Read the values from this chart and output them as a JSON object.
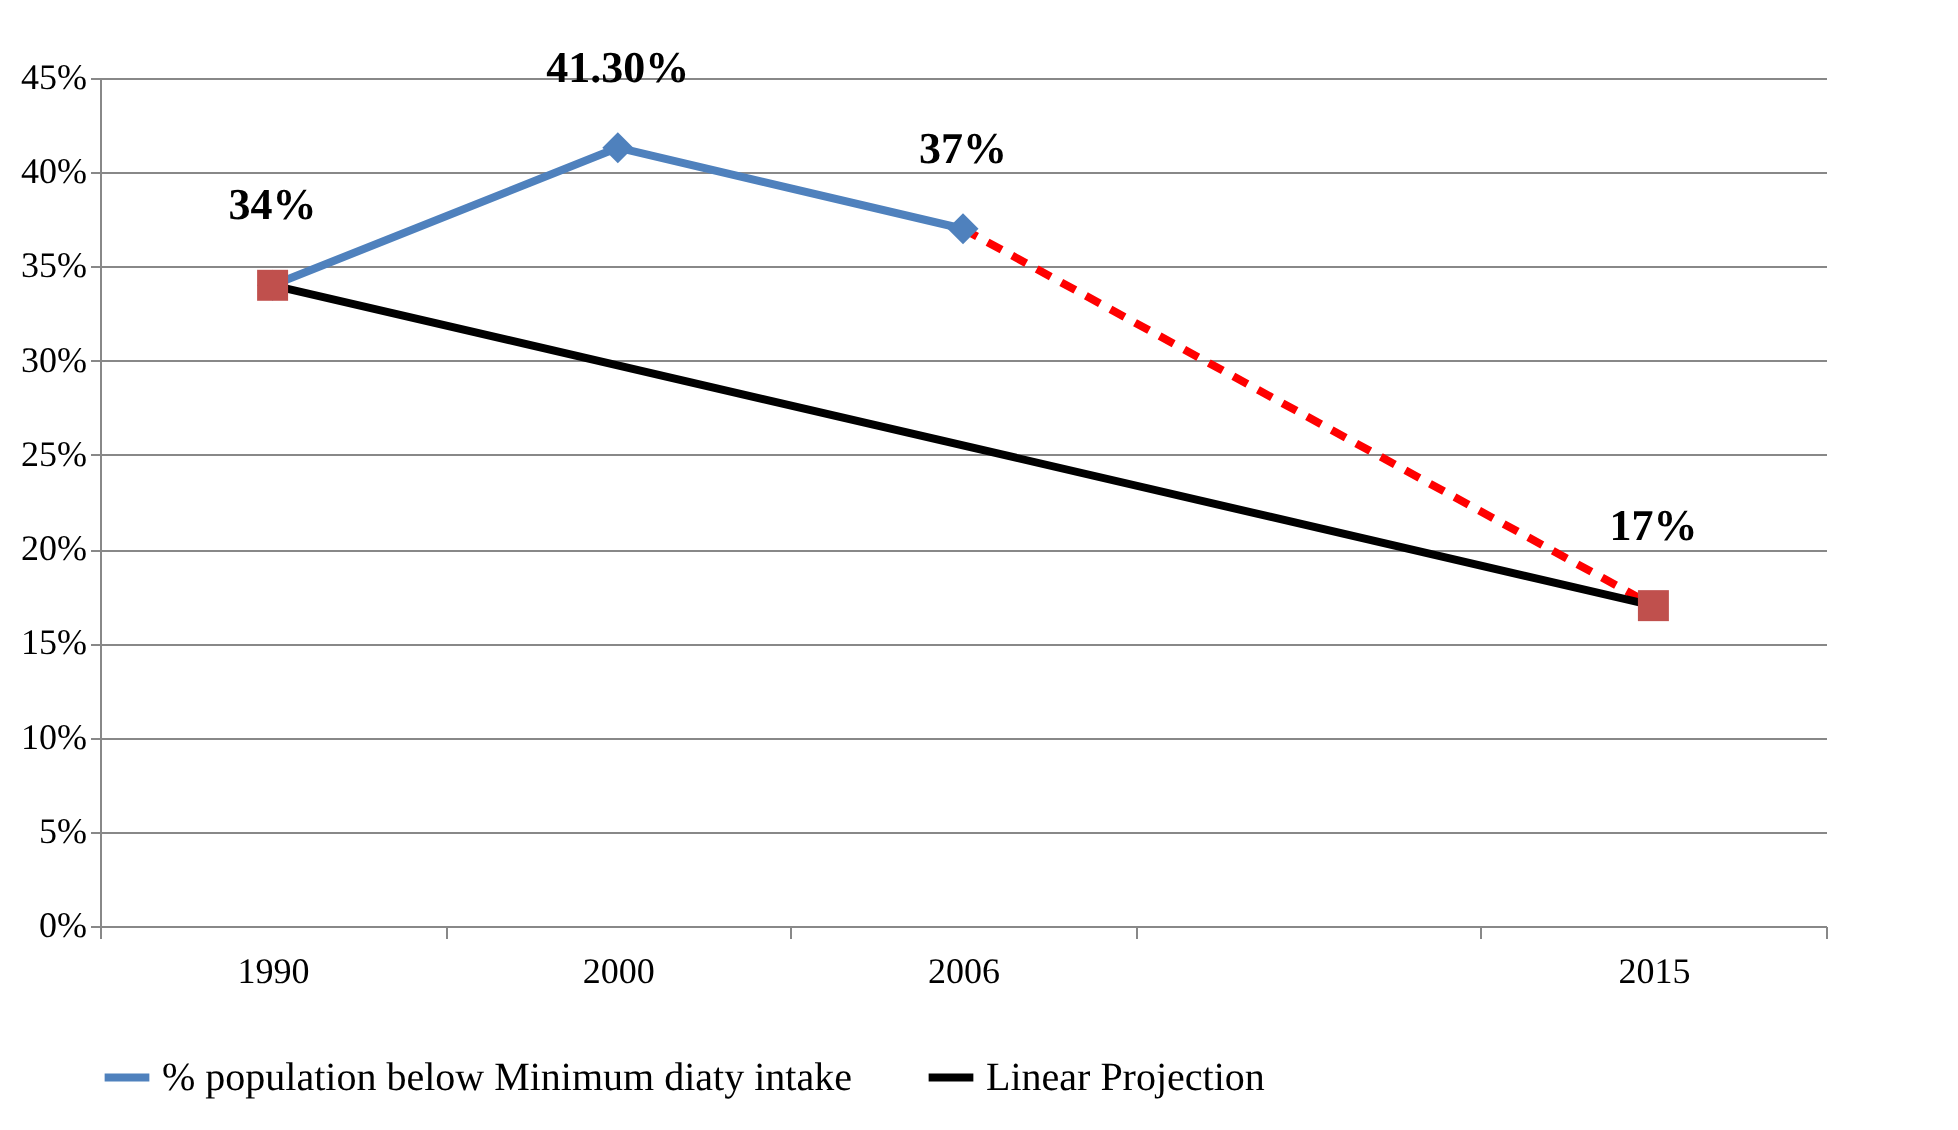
{
  "chart_data": {
    "type": "line",
    "categories": [
      "1990",
      "2000",
      "2006",
      null,
      "2015"
    ],
    "series": [
      {
        "name": "% population below Minimum diaty intake",
        "color": "#4f81bd",
        "marker": "diamond",
        "line_style": "solid",
        "values": [
          34,
          41.3,
          37,
          null,
          null
        ],
        "value_labels": [
          "34%",
          "41.30%",
          "37%",
          null,
          null
        ]
      },
      {
        "color": "#ff0000",
        "marker": "none",
        "line_style": "dashed",
        "values": [
          null,
          null,
          37,
          null,
          17
        ],
        "value_labels": [
          null,
          null,
          null,
          null,
          "17%"
        ]
      },
      {
        "name": "Linear Projection",
        "color": "#000000",
        "marker": "none",
        "line_style": "solid",
        "values": [
          34,
          null,
          null,
          null,
          17
        ]
      },
      {
        "type": "scatter",
        "color": "#c0504d",
        "marker": "square",
        "values": [
          34,
          null,
          null,
          null,
          17
        ]
      }
    ],
    "ylim": [
      0,
      45
    ],
    "yticks": [
      {
        "value": 0,
        "label": "0%"
      },
      {
        "value": 5,
        "label": "5%"
      },
      {
        "value": 10,
        "label": "10%"
      },
      {
        "value": 15,
        "label": "15%"
      },
      {
        "value": 20,
        "label": "20%"
      },
      {
        "value": 25,
        "label": "25%"
      },
      {
        "value": 30,
        "label": "30%"
      },
      {
        "value": 35,
        "label": "35%"
      },
      {
        "value": 40,
        "label": "40%"
      },
      {
        "value": 45,
        "label": "45%"
      }
    ],
    "grid": "y",
    "legend": "bottom"
  }
}
